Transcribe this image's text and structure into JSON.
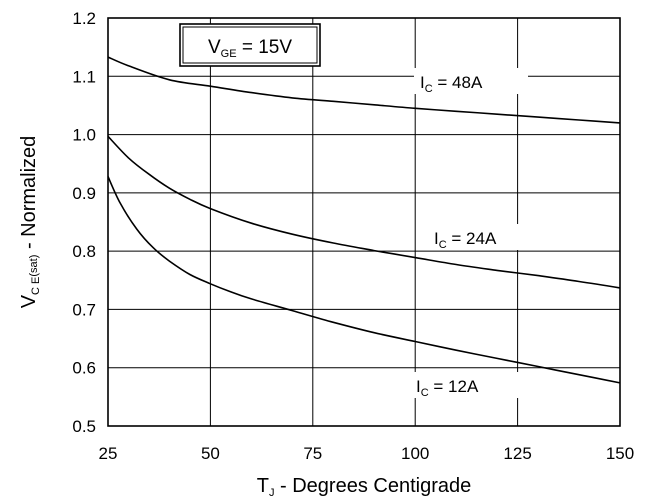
{
  "chart_data": {
    "type": "line",
    "title": "",
    "xlabel": {
      "main": "T",
      "sub": "J",
      "rest": " - Degrees Centigrade"
    },
    "ylabel": {
      "v": "V",
      "sub1": "C E",
      "sub2": "(sat)",
      "rest": " - Normalized"
    },
    "xlim": [
      25,
      150
    ],
    "ylim": [
      0.5,
      1.2
    ],
    "x_ticks": [
      "25",
      "50",
      "75",
      "100",
      "125",
      "150"
    ],
    "y_ticks": [
      "0.5",
      "0.6",
      "0.7",
      "0.8",
      "0.9",
      "1.0",
      "1.1",
      "1.2"
    ],
    "grid": true,
    "annotation": {
      "main": "V",
      "sub": "GE",
      "rest": " = 15V"
    },
    "series": [
      {
        "name": "IC = 48A",
        "label": {
          "main": "I",
          "sub": "C",
          "rest": " = 48A"
        },
        "x": [
          25,
          30,
          40,
          50,
          60,
          70,
          80,
          90,
          100,
          110,
          120,
          130,
          140,
          150
        ],
        "y": [
          1.133,
          1.118,
          1.094,
          1.083,
          1.072,
          1.063,
          1.057,
          1.051,
          1.045,
          1.04,
          1.035,
          1.03,
          1.025,
          1.02
        ]
      },
      {
        "name": "IC = 24A",
        "label": {
          "main": "I",
          "sub": "C",
          "rest": " = 24A"
        },
        "x": [
          25,
          30,
          35,
          40,
          45,
          50,
          60,
          70,
          80,
          90,
          100,
          110,
          120,
          130,
          140,
          150
        ],
        "y": [
          0.997,
          0.96,
          0.932,
          0.908,
          0.889,
          0.873,
          0.848,
          0.829,
          0.814,
          0.801,
          0.789,
          0.777,
          0.767,
          0.758,
          0.748,
          0.737
        ]
      },
      {
        "name": "IC = 12A",
        "label": {
          "main": "I",
          "sub": "C",
          "rest": " = 12A"
        },
        "x": [
          25,
          28,
          32,
          36,
          40,
          45,
          50,
          55,
          60,
          70,
          80,
          90,
          100,
          110,
          120,
          130,
          140,
          150
        ],
        "y": [
          0.928,
          0.882,
          0.838,
          0.806,
          0.783,
          0.76,
          0.744,
          0.73,
          0.718,
          0.698,
          0.678,
          0.66,
          0.645,
          0.63,
          0.616,
          0.602,
          0.588,
          0.574
        ]
      }
    ]
  }
}
